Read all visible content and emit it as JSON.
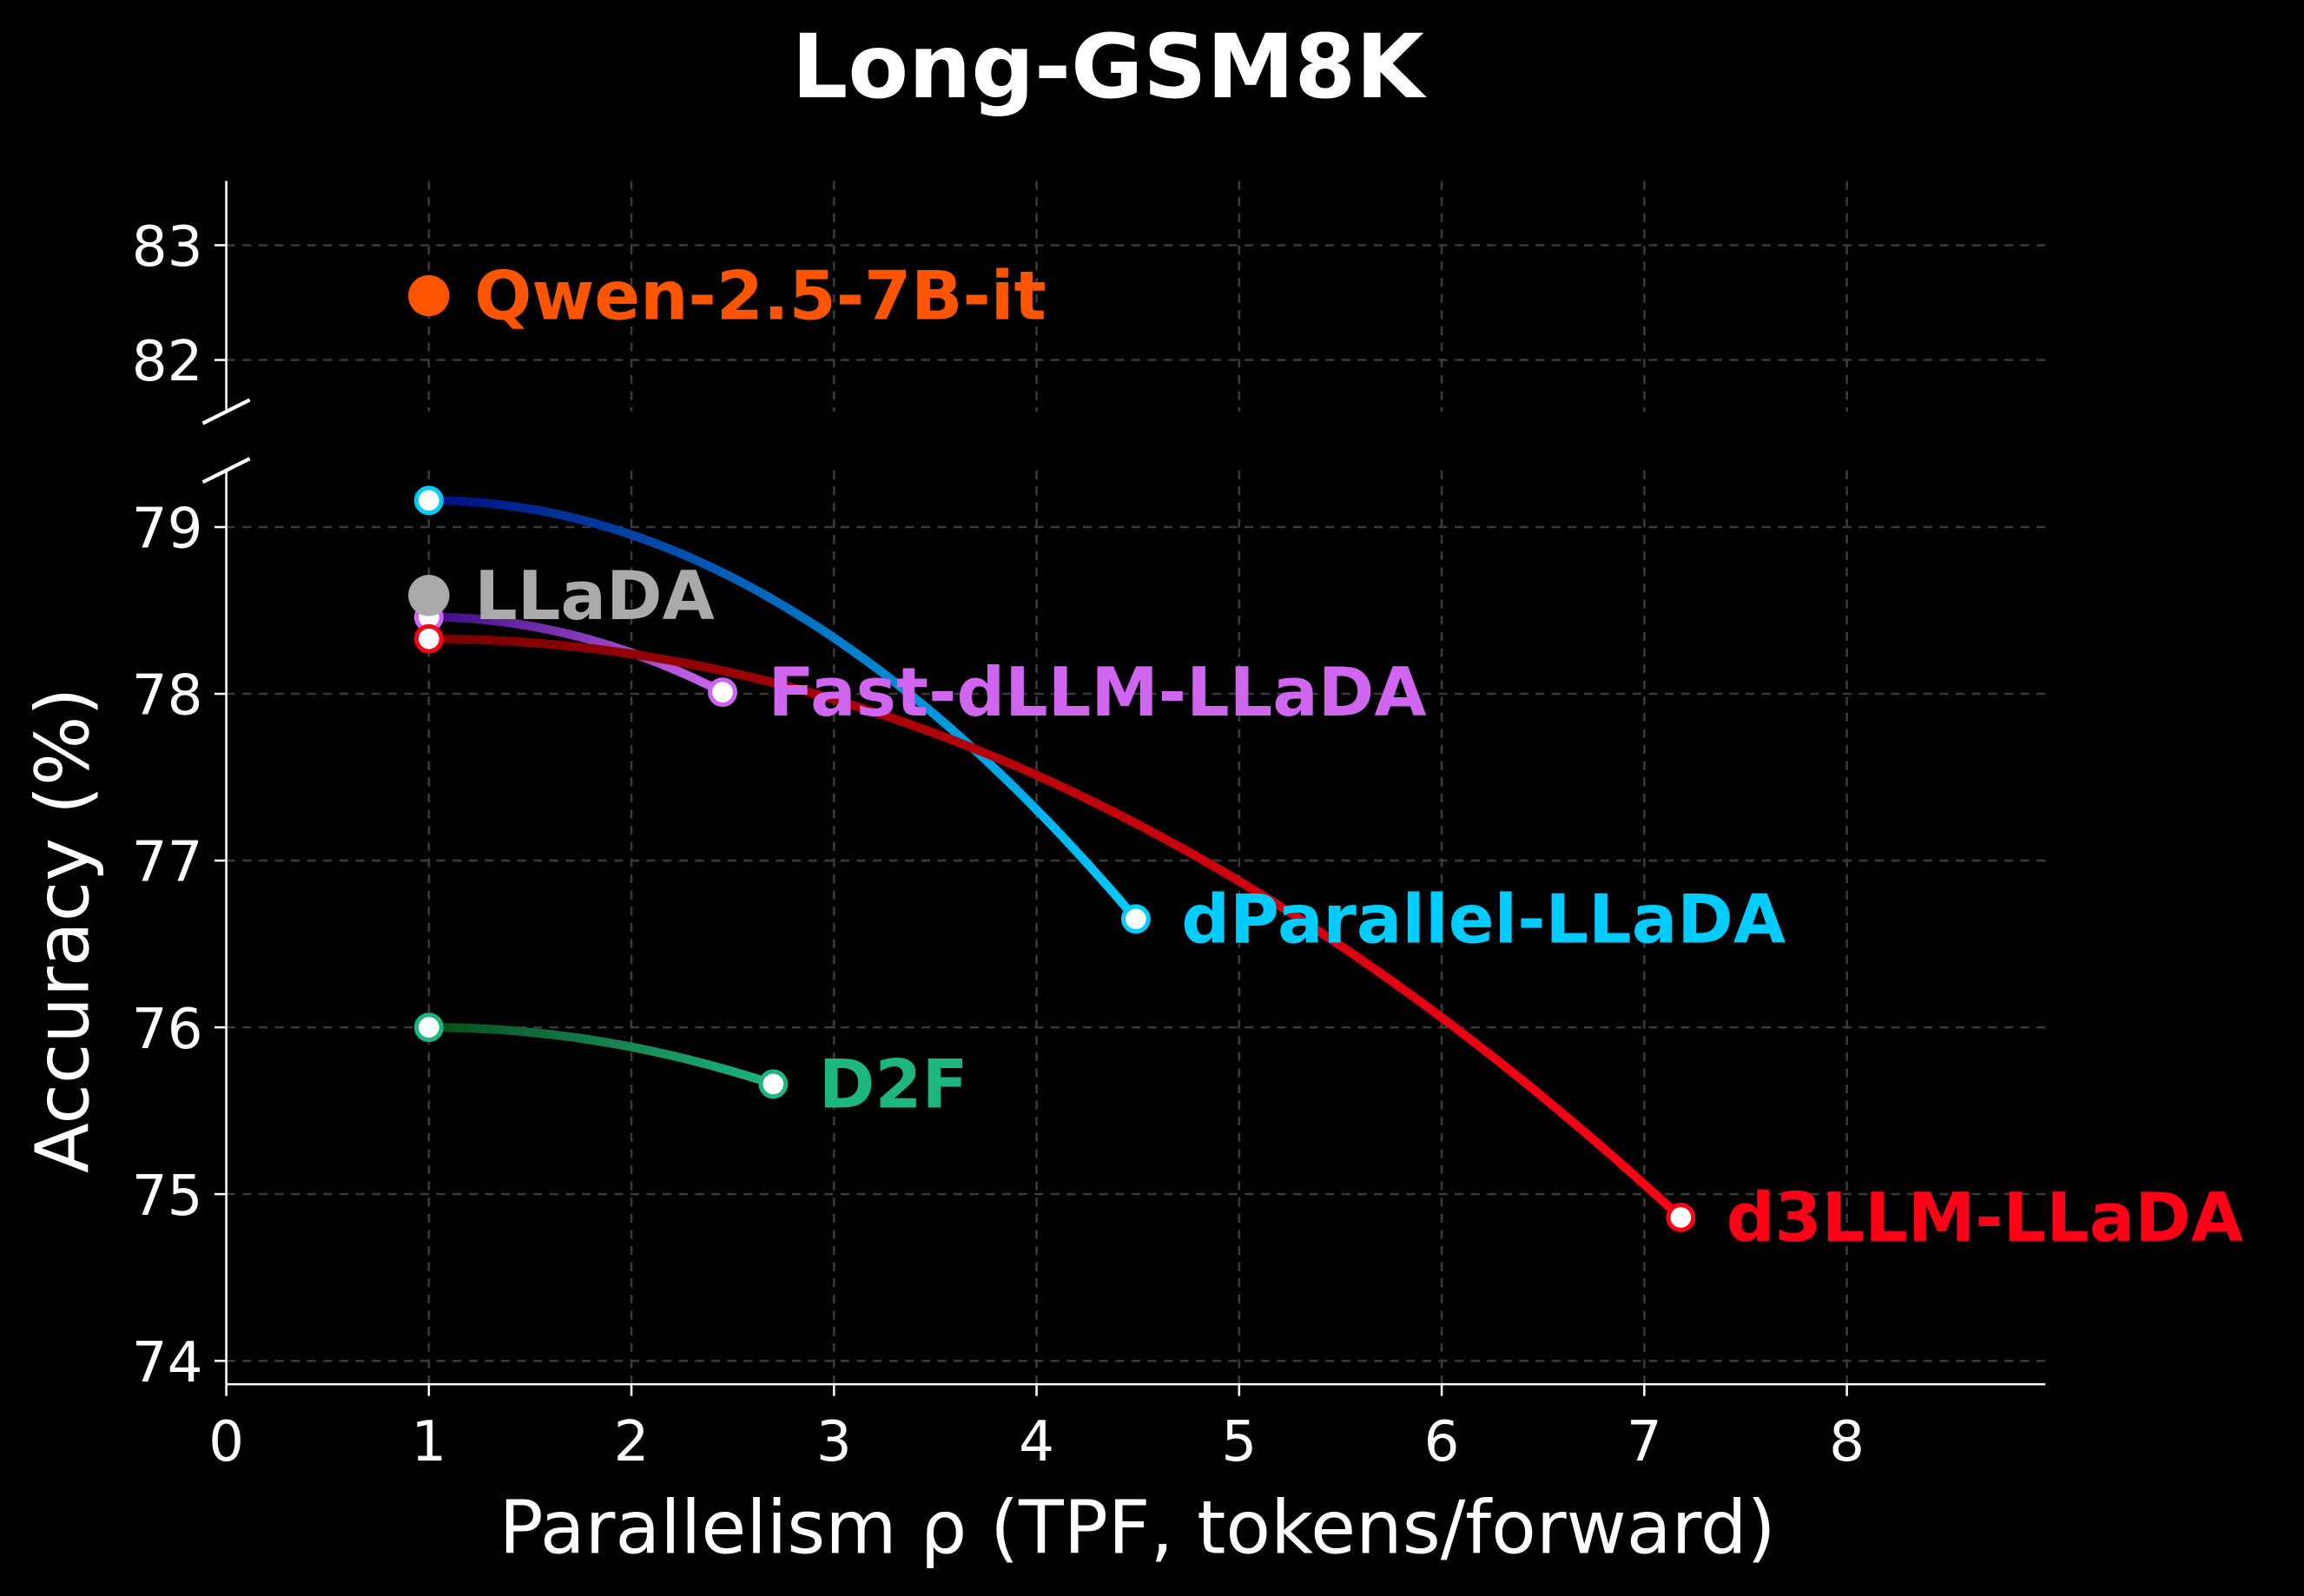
{
  "chart_data": {
    "type": "line",
    "title": "Long-GSM8K",
    "xlabel": "Parallelism ρ (TPF, tokens/forward)",
    "ylabel": "Accuracy (%)",
    "xlim": [
      0,
      8.98
    ],
    "ylim_lower": [
      73.86,
      79.34
    ],
    "ylim_upper": [
      81.55,
      83.56
    ],
    "broken_y_axis": true,
    "x_ticks": [
      "0",
      "1",
      "2",
      "3",
      "4",
      "5",
      "6",
      "7",
      "8"
    ],
    "y_ticks_lower": [
      "74",
      "75",
      "76",
      "77",
      "78",
      "79"
    ],
    "y_ticks_upper": [
      "82",
      "83"
    ],
    "grid": true,
    "background": "#000000",
    "single_points": [
      {
        "name": "Qwen-2.5-7B-it",
        "x": 1.0,
        "y": 82.56,
        "color": "#FF5500",
        "panel": "upper"
      },
      {
        "name": "LLaDA",
        "x": 1.0,
        "y": 78.59,
        "color": "#AAAAAA",
        "panel": "lower"
      }
    ],
    "series": [
      {
        "name": "dParallel-LLaDA",
        "color": "#00CCFF",
        "start_color": "#000C80",
        "x": [
          1.0,
          4.49
        ],
        "y": [
          79.16,
          76.65
        ]
      },
      {
        "name": "Fast-dLLM-LLaDA",
        "color": "#D066F0",
        "start_color": "#3A0A80",
        "x": [
          1.0,
          2.45
        ],
        "y": [
          78.46,
          78.01
        ]
      },
      {
        "name": "d3LLM-LLaDA",
        "color": "#FF0016",
        "start_color": "#7A0000",
        "x": [
          1.0,
          7.18
        ],
        "y": [
          78.33,
          74.86
        ]
      },
      {
        "name": "D2F",
        "color": "#1DB67F",
        "start_color": "#0A4A1A",
        "x": [
          1.0,
          2.7
        ],
        "y": [
          76.0,
          75.66
        ]
      }
    ]
  }
}
